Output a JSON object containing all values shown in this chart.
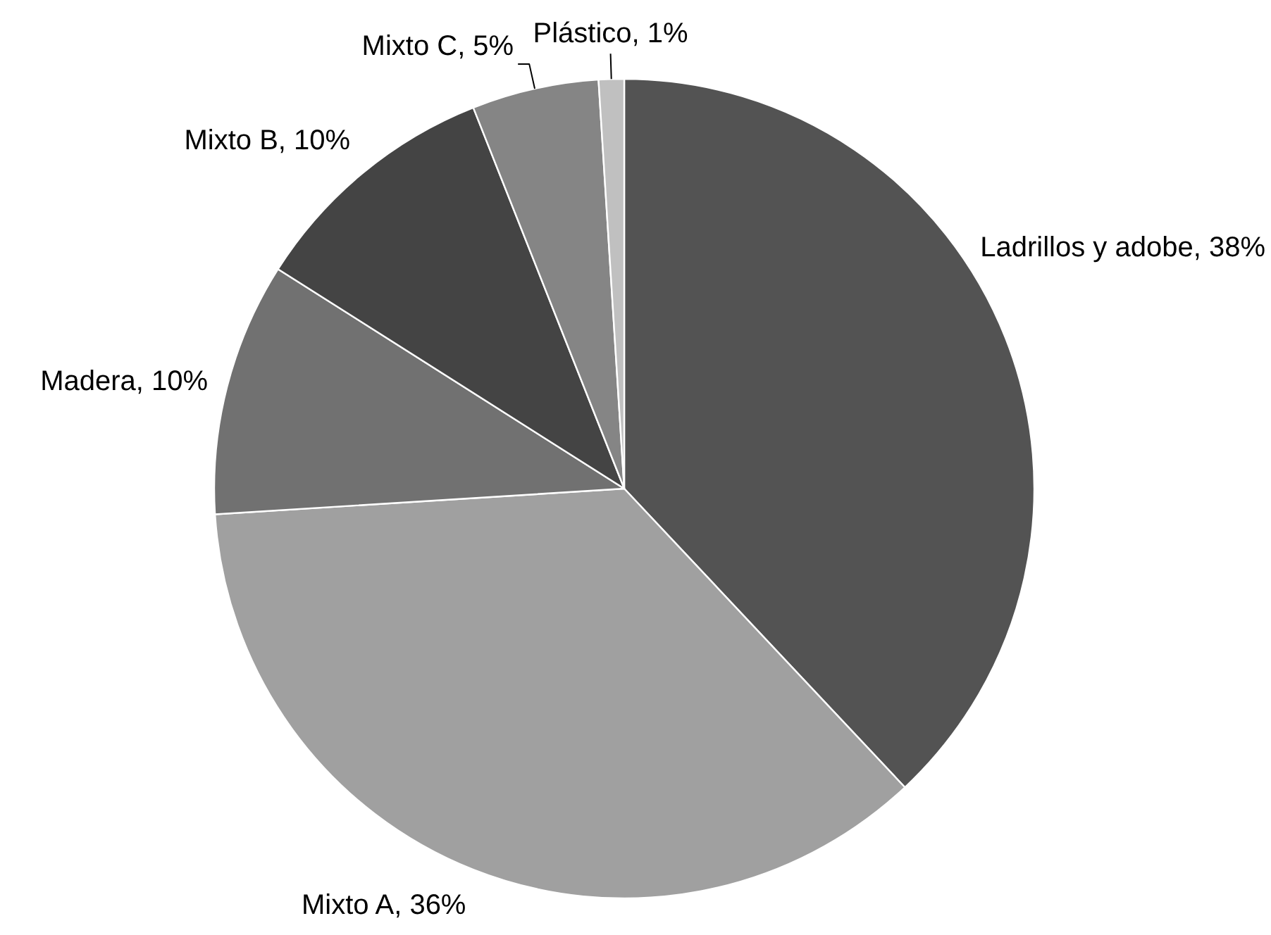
{
  "chart_data": {
    "type": "pie",
    "categories": [
      "Ladrillos y adobe",
      "Mixto A",
      "Madera",
      "Mixto B",
      "Mixto C",
      "Plástico"
    ],
    "values": [
      38,
      36,
      10,
      10,
      5,
      1
    ],
    "value_labels": [
      "38%",
      "36%",
      "10%",
      "10%",
      "5%",
      "1%"
    ],
    "colors": [
      "#535353",
      "#a0a0a0",
      "#717171",
      "#444444",
      "#858585",
      "#c0c0c0"
    ]
  }
}
